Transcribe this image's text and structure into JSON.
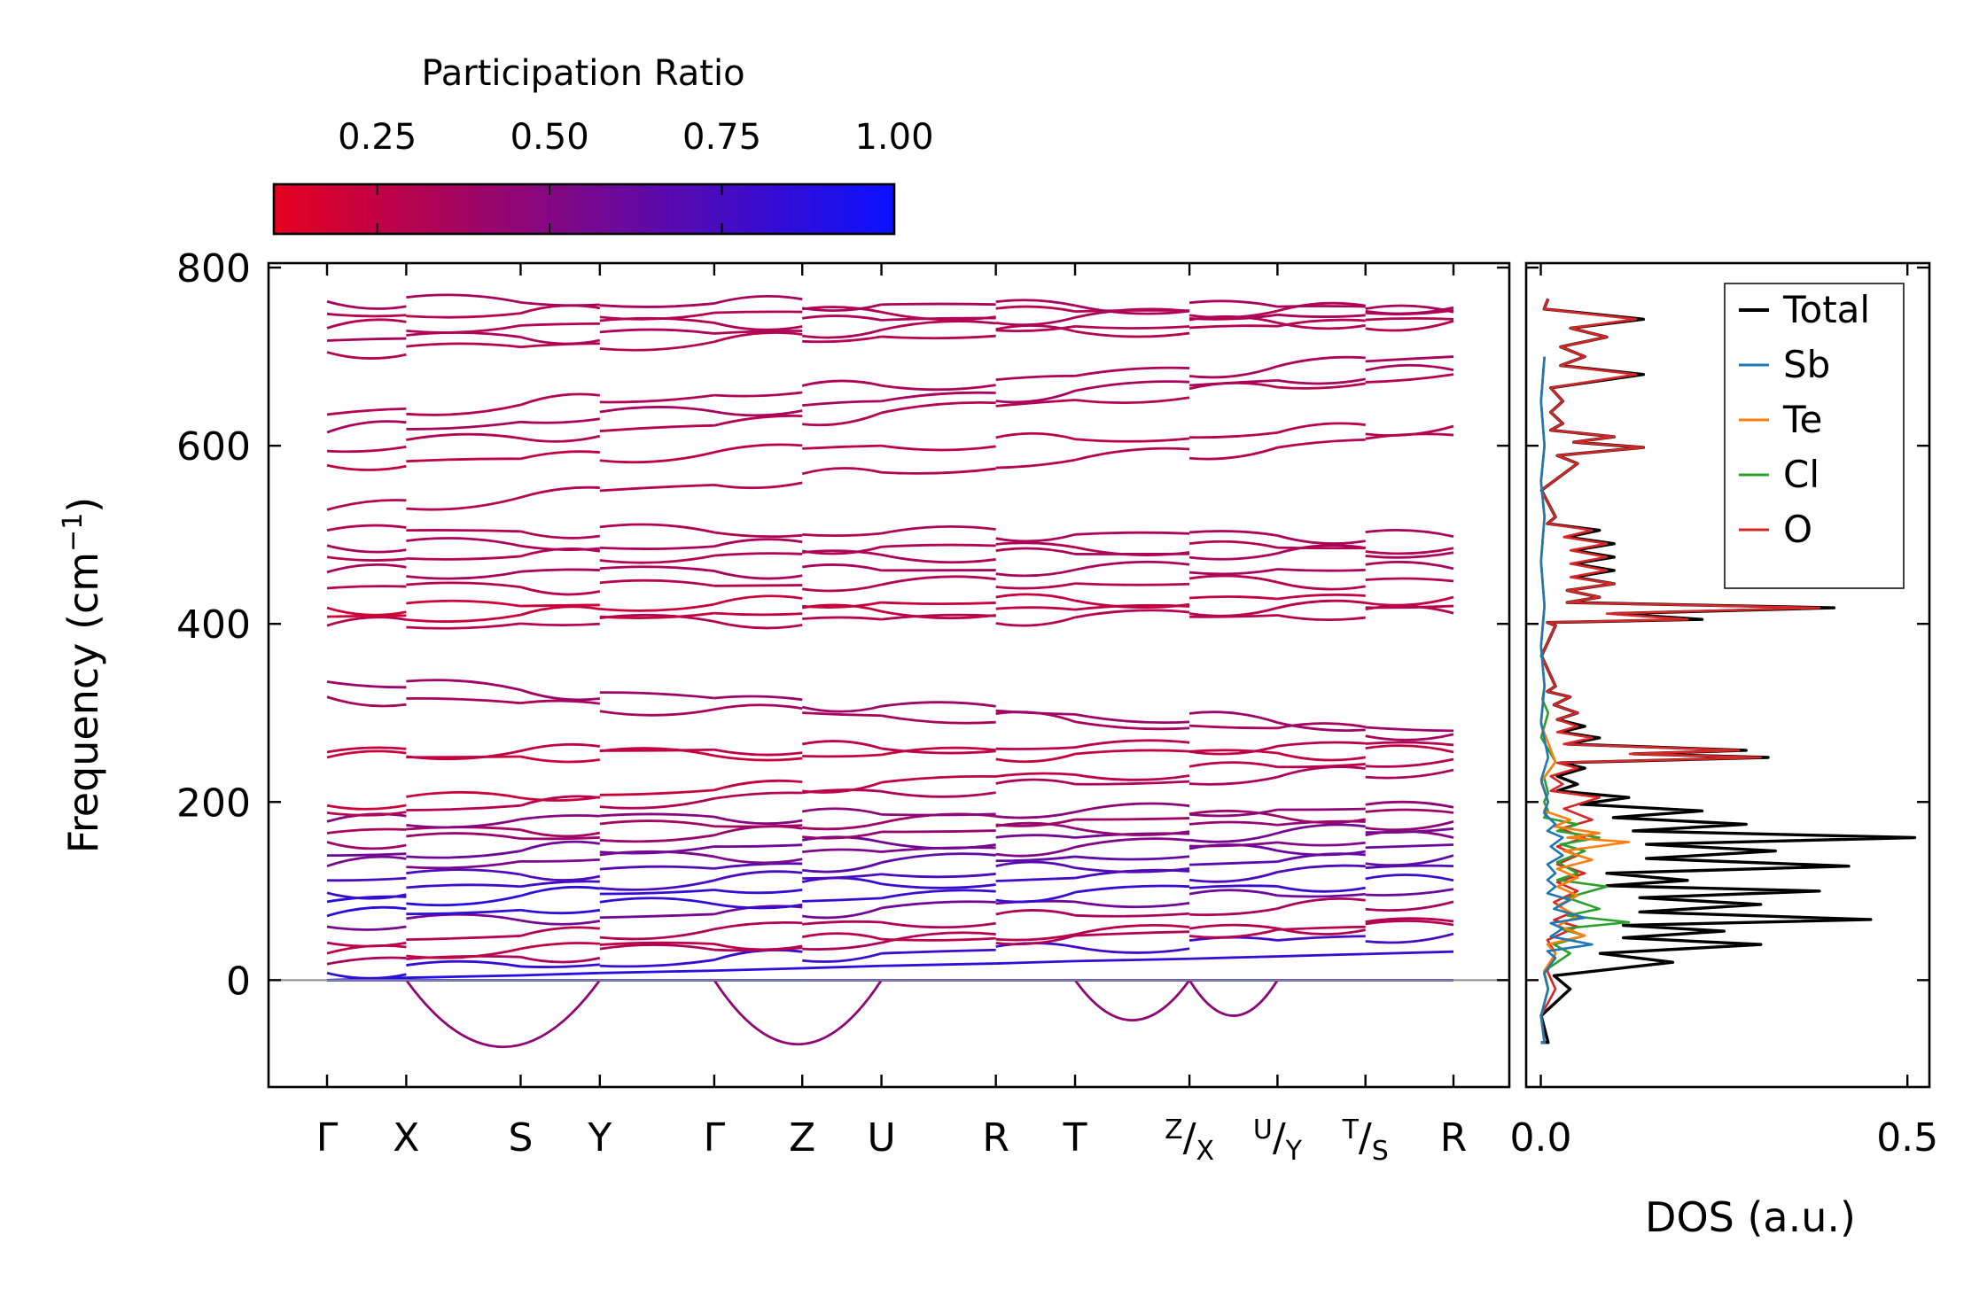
{
  "colors": {
    "pr_low": "#e6001e",
    "pr_high": "#0a10ff",
    "zero_line": "#8c8c8c",
    "total": "#000000",
    "Sb": "#1f77b4",
    "Te": "#ff7f0e",
    "Cl": "#2ca02c",
    "O": "#d62728"
  },
  "chart_data": [
    {
      "type": "line",
      "name": "phonon-band-structure",
      "ylabel": "Frequency (cm",
      "ylabel_sup": "−1",
      "ylabel_tail": ")",
      "ylim": [
        -120,
        805
      ],
      "yticks": [
        0,
        200,
        400,
        600,
        800
      ],
      "path_labels": [
        {
          "main": "Γ",
          "pre": "",
          "post": ""
        },
        {
          "main": "X",
          "pre": "",
          "post": ""
        },
        {
          "main": "S",
          "pre": "",
          "post": ""
        },
        {
          "main": "Y",
          "pre": "",
          "post": ""
        },
        {
          "main": "Γ",
          "pre": "",
          "post": ""
        },
        {
          "main": "Z",
          "pre": "",
          "post": ""
        },
        {
          "main": "U",
          "pre": "",
          "post": ""
        },
        {
          "main": "R",
          "pre": "",
          "post": ""
        },
        {
          "main": "T",
          "pre": "",
          "post": ""
        },
        {
          "main": "/",
          "pre": "Z",
          "post": "X"
        },
        {
          "main": "/",
          "pre": "U",
          "post": "Y"
        },
        {
          "main": "/",
          "pre": "T",
          "post": "S"
        },
        {
          "main": "R",
          "pre": "",
          "post": ""
        }
      ],
      "path_distance": [
        0,
        0.9,
        2.2,
        3.1,
        4.4,
        5.4,
        6.3,
        7.6,
        8.5,
        9.8,
        10.8,
        11.8,
        12.8
      ],
      "path_breaks_after": [
        9,
        10,
        11
      ],
      "bands_start": [
        0,
        0,
        0,
        8,
        18,
        30,
        42,
        60,
        72,
        88,
        98,
        112,
        128,
        140,
        155,
        165,
        178,
        188,
        196,
        250,
        256,
        318,
        335,
        398,
        408,
        418,
        440,
        458,
        475,
        488,
        505,
        528,
        578,
        594,
        615,
        635,
        705,
        718,
        732,
        748,
        762
      ],
      "bands_end": [
        0,
        0,
        32,
        52,
        66,
        62,
        88,
        102,
        112,
        128,
        140,
        152,
        160,
        170,
        178,
        188,
        194,
        236,
        248,
        256,
        264,
        276,
        280,
        412,
        420,
        430,
        448,
        462,
        480,
        485,
        498,
        612,
        622,
        680,
        685,
        700,
        740,
        742,
        750,
        752,
        755
      ],
      "pr_start": [
        0.92,
        0.95,
        0.9,
        0.85,
        0.35,
        0.25,
        0.3,
        0.55,
        0.85,
        0.9,
        0.8,
        0.75,
        0.55,
        0.6,
        0.4,
        0.35,
        0.5,
        0.3,
        0.2,
        0.2,
        0.25,
        0.35,
        0.4,
        0.3,
        0.2,
        0.2,
        0.3,
        0.35,
        0.3,
        0.35,
        0.3,
        0.3,
        0.25,
        0.3,
        0.35,
        0.3,
        0.3,
        0.35,
        0.3,
        0.3,
        0.35
      ],
      "pr_end": [
        0.9,
        0.85,
        0.8,
        0.75,
        0.3,
        0.3,
        0.35,
        0.6,
        0.8,
        0.7,
        0.65,
        0.6,
        0.5,
        0.55,
        0.45,
        0.4,
        0.45,
        0.35,
        0.3,
        0.25,
        0.3,
        0.35,
        0.4,
        0.3,
        0.3,
        0.25,
        0.3,
        0.35,
        0.35,
        0.3,
        0.35,
        0.3,
        0.3,
        0.3,
        0.35,
        0.35,
        0.3,
        0.3,
        0.35,
        0.3,
        0.35
      ],
      "imaginary_modes": [
        {
          "from": 1,
          "to": 3,
          "min": -75
        },
        {
          "from": 4,
          "to": 6,
          "min": -72
        },
        {
          "from": 8,
          "to": 9,
          "min": -45
        },
        {
          "from": 9,
          "to": 10,
          "min": -40
        }
      ],
      "zero_line": 0
    },
    {
      "type": "line",
      "name": "phonon-dos",
      "xlabel": "DOS (a.u.)",
      "xlim": [
        -0.02,
        0.53
      ],
      "xticks": [
        0.0,
        0.5
      ],
      "xtick_labels": [
        "0.0",
        "0.5"
      ],
      "ylim": [
        -120,
        805
      ],
      "series": [
        {
          "name": "Total",
          "color_key": "total",
          "peaks": [
            [
              -70,
              0.01
            ],
            [
              -10,
              0.04
            ],
            [
              20,
              0.18
            ],
            [
              40,
              0.3
            ],
            [
              55,
              0.25
            ],
            [
              68,
              0.45
            ],
            [
              85,
              0.3
            ],
            [
              100,
              0.38
            ],
            [
              112,
              0.2
            ],
            [
              128,
              0.42
            ],
            [
              145,
              0.32
            ],
            [
              160,
              0.51
            ],
            [
              175,
              0.28
            ],
            [
              190,
              0.22
            ],
            [
              205,
              0.12
            ],
            [
              220,
              0.05
            ],
            [
              238,
              0.06
            ],
            [
              250,
              0.31
            ],
            [
              258,
              0.28
            ],
            [
              272,
              0.08
            ],
            [
              285,
              0.06
            ],
            [
              300,
              0.05
            ],
            [
              318,
              0.04
            ],
            [
              330,
              0.02
            ],
            [
              398,
              0.02
            ],
            [
              405,
              0.22
            ],
            [
              418,
              0.4
            ],
            [
              430,
              0.08
            ],
            [
              445,
              0.1
            ],
            [
              460,
              0.1
            ],
            [
              475,
              0.1
            ],
            [
              490,
              0.1
            ],
            [
              505,
              0.08
            ],
            [
              520,
              0.02
            ],
            [
              580,
              0.05
            ],
            [
              598,
              0.14
            ],
            [
              610,
              0.1
            ],
            [
              625,
              0.03
            ],
            [
              650,
              0.03
            ],
            [
              680,
              0.14
            ],
            [
              700,
              0.06
            ],
            [
              722,
              0.09
            ],
            [
              742,
              0.14
            ],
            [
              765,
              0.01
            ]
          ]
        },
        {
          "name": "Sb",
          "color_key": "Sb",
          "peaks": [
            [
              -70,
              0.005
            ],
            [
              -10,
              0.01
            ],
            [
              25,
              0.02
            ],
            [
              40,
              0.07
            ],
            [
              58,
              0.03
            ],
            [
              70,
              0.06
            ],
            [
              90,
              0.04
            ],
            [
              105,
              0.02
            ],
            [
              120,
              0.02
            ],
            [
              140,
              0.03
            ],
            [
              160,
              0.03
            ],
            [
              175,
              0.02
            ],
            [
              200,
              0.01
            ],
            [
              250,
              0.01
            ],
            [
              330,
              0.005
            ],
            [
              420,
              0.005
            ],
            [
              520,
              0.005
            ],
            [
              600,
              0.005
            ],
            [
              700,
              0.005
            ]
          ]
        },
        {
          "name": "Te",
          "color_key": "Te",
          "peaks": [
            [
              -70,
              0.005
            ],
            [
              -10,
              0.01
            ],
            [
              30,
              0.02
            ],
            [
              50,
              0.06
            ],
            [
              72,
              0.05
            ],
            [
              95,
              0.05
            ],
            [
              115,
              0.05
            ],
            [
              135,
              0.07
            ],
            [
              155,
              0.12
            ],
            [
              165,
              0.08
            ],
            [
              180,
              0.04
            ],
            [
              200,
              0.01
            ],
            [
              245,
              0.02
            ],
            [
              330,
              0.005
            ],
            [
              420,
              0.005
            ],
            [
              520,
              0.005
            ],
            [
              600,
              0.005
            ],
            [
              700,
              0.005
            ]
          ]
        },
        {
          "name": "Cl",
          "color_key": "Cl",
          "peaks": [
            [
              -70,
              0.005
            ],
            [
              -10,
              0.01
            ],
            [
              30,
              0.04
            ],
            [
              50,
              0.06
            ],
            [
              65,
              0.12
            ],
            [
              80,
              0.08
            ],
            [
              105,
              0.09
            ],
            [
              120,
              0.05
            ],
            [
              145,
              0.06
            ],
            [
              160,
              0.08
            ],
            [
              175,
              0.05
            ],
            [
              190,
              0.01
            ],
            [
              210,
              0.01
            ],
            [
              245,
              0.02
            ],
            [
              300,
              0.01
            ],
            [
              330,
              0.005
            ],
            [
              420,
              0.005
            ],
            [
              520,
              0.005
            ],
            [
              600,
              0.005
            ],
            [
              700,
              0.005
            ]
          ]
        },
        {
          "name": "O",
          "color_key": "O",
          "peaks": [
            [
              -70,
              0.005
            ],
            [
              -10,
              0.02
            ],
            [
              30,
              0.02
            ],
            [
              60,
              0.05
            ],
            [
              75,
              0.04
            ],
            [
              100,
              0.05
            ],
            [
              120,
              0.06
            ],
            [
              140,
              0.05
            ],
            [
              160,
              0.06
            ],
            [
              180,
              0.07
            ],
            [
              205,
              0.08
            ],
            [
              220,
              0.03
            ],
            [
              238,
              0.05
            ],
            [
              250,
              0.3
            ],
            [
              258,
              0.27
            ],
            [
              272,
              0.07
            ],
            [
              285,
              0.05
            ],
            [
              300,
              0.05
            ],
            [
              318,
              0.04
            ],
            [
              330,
              0.02
            ],
            [
              398,
              0.02
            ],
            [
              405,
              0.2
            ],
            [
              418,
              0.38
            ],
            [
              430,
              0.08
            ],
            [
              445,
              0.1
            ],
            [
              460,
              0.09
            ],
            [
              475,
              0.09
            ],
            [
              490,
              0.09
            ],
            [
              505,
              0.07
            ],
            [
              520,
              0.02
            ],
            [
              580,
              0.05
            ],
            [
              598,
              0.14
            ],
            [
              610,
              0.1
            ],
            [
              625,
              0.03
            ],
            [
              650,
              0.03
            ],
            [
              680,
              0.13
            ],
            [
              700,
              0.06
            ],
            [
              722,
              0.09
            ],
            [
              742,
              0.13
            ],
            [
              765,
              0.01
            ]
          ]
        }
      ]
    }
  ],
  "colorbar": {
    "title": "Participation Ratio",
    "range": [
      0.1,
      1.0
    ],
    "ticks": [
      0.25,
      0.5,
      0.75,
      1.0
    ],
    "tick_labels": [
      "0.25",
      "0.50",
      "0.75",
      "1.00"
    ]
  },
  "legend": {
    "position": "top-right",
    "entries": [
      "Total",
      "Sb",
      "Te",
      "Cl",
      "O"
    ]
  }
}
